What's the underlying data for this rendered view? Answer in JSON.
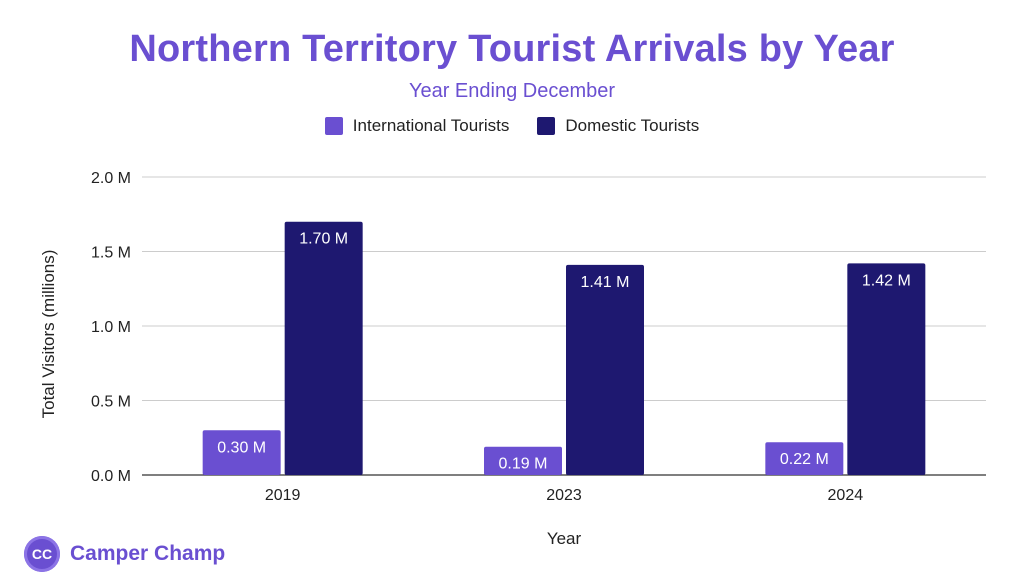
{
  "chart_data": {
    "type": "bar",
    "title": "Northern Territory Tourist Arrivals by Year",
    "subtitle": "Year Ending December",
    "xlabel": "Year",
    "ylabel": "Total Visitors (millions)",
    "categories": [
      "2019",
      "2023",
      "2024"
    ],
    "series": [
      {
        "name": "International Tourists",
        "values": [
          0.3,
          0.19,
          0.22
        ],
        "labels": [
          "0.30 M",
          "0.19 M",
          "0.22 M"
        ],
        "color": "#6a4fd1"
      },
      {
        "name": "Domestic Tourists",
        "values": [
          1.7,
          1.41,
          1.42
        ],
        "labels": [
          "1.70 M",
          "1.41 M",
          "1.42 M"
        ],
        "color": "#1e1870"
      }
    ],
    "ylim": [
      0,
      2.0
    ],
    "yticks": [
      {
        "value": 0.0,
        "label": "0.0 M"
      },
      {
        "value": 0.5,
        "label": "0.5 M"
      },
      {
        "value": 1.0,
        "label": "1.0 M"
      },
      {
        "value": 1.5,
        "label": "1.5 M"
      },
      {
        "value": 2.0,
        "label": "2.0 M"
      }
    ],
    "grid": true,
    "legend_position": "top-center"
  },
  "brand": {
    "logo_text": "CC",
    "name": "Camper Champ"
  }
}
